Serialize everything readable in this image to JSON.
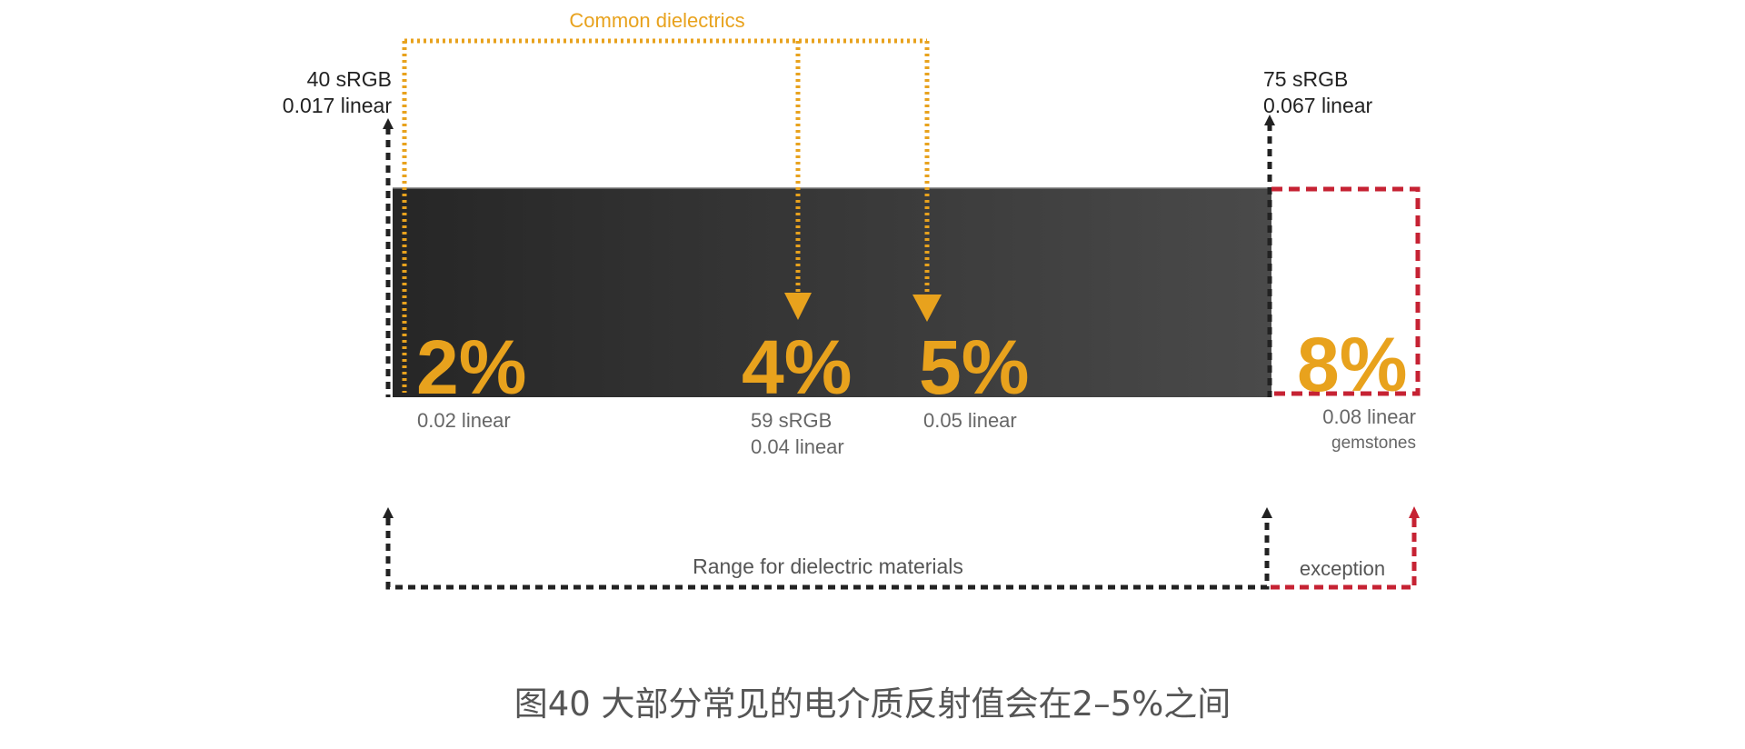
{
  "diagram": {
    "top_label": "Common dielectrics",
    "left_marker": {
      "line1": "40 sRGB",
      "line2": "0.017 linear"
    },
    "right_marker": {
      "line1": "75 sRGB",
      "line2": "0.067 linear"
    },
    "values": [
      {
        "percent": "2%",
        "sub1": "0.02 linear",
        "sub2": ""
      },
      {
        "percent": "4%",
        "sub1": "59 sRGB",
        "sub2": "0.04 linear"
      },
      {
        "percent": "5%",
        "sub1": "0.05 linear",
        "sub2": ""
      },
      {
        "percent": "8%",
        "sub1": "0.08 linear",
        "sub2": "gemstones"
      }
    ],
    "range_label": "Range for dielectric materials",
    "exception_label": "exception",
    "caption": "图40 大部分常见的电介质反射值会在2–5%之间"
  },
  "colors": {
    "accent_orange": "#E8A21D",
    "accent_red": "#C62233",
    "bar_dark": "#262626",
    "bar_light": "#4a4a4a",
    "dashed_black": "#222222",
    "label_gray": "#666666"
  }
}
